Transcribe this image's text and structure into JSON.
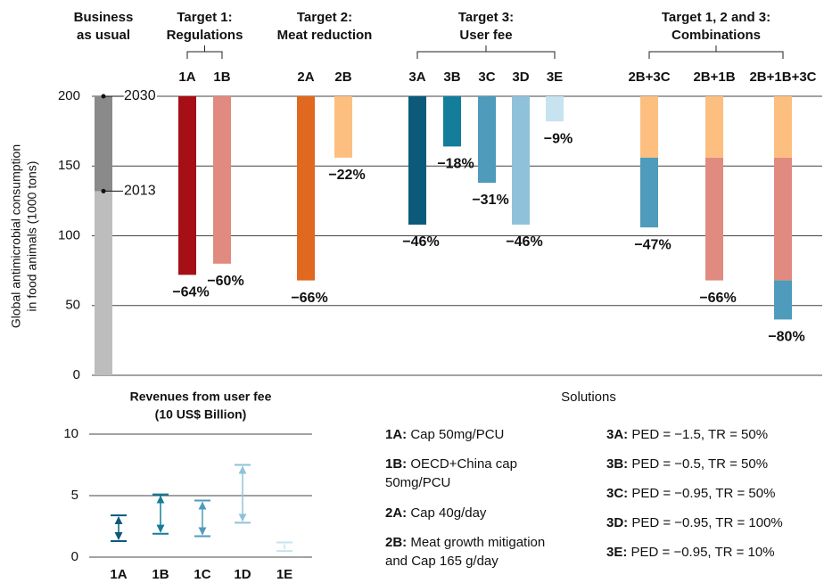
{
  "chart_data": [
    {
      "type": "range_bar",
      "y_label": [
        "Global antimicrobial consumption",
        "in food animals (1000 tons)"
      ],
      "ylim": [
        0,
        200
      ],
      "yticks": [
        0,
        50,
        100,
        150,
        200
      ],
      "grid": true,
      "groups": [
        {
          "title": [
            "Business",
            "as usual"
          ],
          "bracket": false,
          "bars": [
            {
              "segments": [
                {
                  "range": [
                    0,
                    132
                  ],
                  "color": "#bdbdbd"
                },
                {
                  "range": [
                    132,
                    200
                  ],
                  "color": "#8a8a8a"
                }
              ],
              "markers": [
                {
                  "label": "2030",
                  "value": 200
                },
                {
                  "label": "2013",
                  "value": 132
                }
              ]
            }
          ]
        },
        {
          "title": [
            "Target 1:",
            "Regulations"
          ],
          "bracket": true,
          "bars": [
            {
              "label": "1A",
              "segments": [
                {
                  "range": [
                    200,
                    72
                  ],
                  "color": "#a50f15"
                }
              ],
              "change_label": "−64%"
            },
            {
              "label": "1B",
              "segments": [
                {
                  "range": [
                    200,
                    80
                  ],
                  "color": "#e08a80"
                }
              ],
              "change_label": "−60%"
            }
          ]
        },
        {
          "title": [
            "Target 2:",
            "Meat reduction"
          ],
          "bracket": false,
          "bars": [
            {
              "label": "2A",
              "segments": [
                {
                  "range": [
                    200,
                    68
                  ],
                  "color": "#e0691f"
                }
              ],
              "change_label": "−66%"
            },
            {
              "label": "2B",
              "segments": [
                {
                  "range": [
                    200,
                    156
                  ],
                  "color": "#fcbf7f"
                }
              ],
              "change_label": "−22%"
            }
          ]
        },
        {
          "title": [
            "Target 3:",
            "User fee"
          ],
          "bracket": true,
          "bars": [
            {
              "label": "3A",
              "segments": [
                {
                  "range": [
                    200,
                    108
                  ],
                  "color": "#0b5a7a"
                }
              ],
              "change_label": "−46%"
            },
            {
              "label": "3B",
              "segments": [
                {
                  "range": [
                    200,
                    164
                  ],
                  "color": "#137d9a"
                }
              ],
              "change_label": "−18%"
            },
            {
              "label": "3C",
              "segments": [
                {
                  "range": [
                    200,
                    138
                  ],
                  "color": "#4e9bbb"
                }
              ],
              "change_label": "−31%"
            },
            {
              "label": "3D",
              "segments": [
                {
                  "range": [
                    200,
                    108
                  ],
                  "color": "#8fc2da"
                }
              ],
              "change_label": "−46%"
            },
            {
              "label": "3E",
              "segments": [
                {
                  "range": [
                    200,
                    182
                  ],
                  "color": "#c6e3ef"
                }
              ],
              "change_label": "−9%"
            }
          ]
        },
        {
          "title": [
            "Target 1, 2 and 3:",
            "Combinations"
          ],
          "bracket": true,
          "bars": [
            {
              "label": "2B+3C",
              "segments": [
                {
                  "range": [
                    200,
                    156
                  ],
                  "color": "#fcbf7f"
                },
                {
                  "range": [
                    156,
                    106
                  ],
                  "color": "#4e9bbb"
                }
              ],
              "change_label": "−47%"
            },
            {
              "label": "2B+1B",
              "segments": [
                {
                  "range": [
                    200,
                    156
                  ],
                  "color": "#fcbf7f"
                },
                {
                  "range": [
                    156,
                    68
                  ],
                  "color": "#e08a80"
                }
              ],
              "change_label": "−66%"
            },
            {
              "label": "2B+1B+3C",
              "segments": [
                {
                  "range": [
                    200,
                    156
                  ],
                  "color": "#fcbf7f"
                },
                {
                  "range": [
                    156,
                    68
                  ],
                  "color": "#e08a80"
                },
                {
                  "range": [
                    68,
                    40
                  ],
                  "color": "#4e9bbb"
                }
              ],
              "change_label": "−80%"
            }
          ]
        }
      ]
    },
    {
      "type": "range_arrow",
      "title": [
        "Revenues from user fee",
        "(10 US$ Billion)"
      ],
      "categories": [
        "1A",
        "1B",
        "1C",
        "1D",
        "1E"
      ],
      "high": [
        3.4,
        5.1,
        4.6,
        7.5,
        1.2
      ],
      "low": [
        1.3,
        1.9,
        1.7,
        2.8,
        0.5
      ],
      "colors": [
        "#0b5a7a",
        "#137d9a",
        "#4e9bbb",
        "#8fc2da",
        "#c6e3ef"
      ],
      "ylim": [
        0,
        10
      ],
      "yticks": [
        0,
        5,
        10
      ],
      "grid": true
    }
  ],
  "solutions": {
    "title": "Solutions",
    "columns": [
      [
        {
          "key": "1A:",
          "lines": [
            "Cap 50mg/PCU"
          ]
        },
        {
          "key": "1B:",
          "lines": [
            "OECD+China cap",
            "50mg/PCU"
          ]
        },
        {
          "key": "2A:",
          "lines": [
            "Cap 40g/day"
          ]
        },
        {
          "key": "2B:",
          "lines": [
            "Meat growth mitigation",
            "and Cap 165 g/day"
          ]
        }
      ],
      [
        {
          "key": "3A:",
          "lines": [
            "PED = −1.5, TR = 50%"
          ]
        },
        {
          "key": "3B:",
          "lines": [
            "PED = −0.5, TR = 50%"
          ]
        },
        {
          "key": "3C:",
          "lines": [
            "PED = −0.95, TR = 50%"
          ]
        },
        {
          "key": "3D:",
          "lines": [
            "PED = −0.95, TR = 100%"
          ]
        },
        {
          "key": "3E:",
          "lines": [
            "PED = −0.95, TR = 10%"
          ]
        }
      ]
    ]
  }
}
